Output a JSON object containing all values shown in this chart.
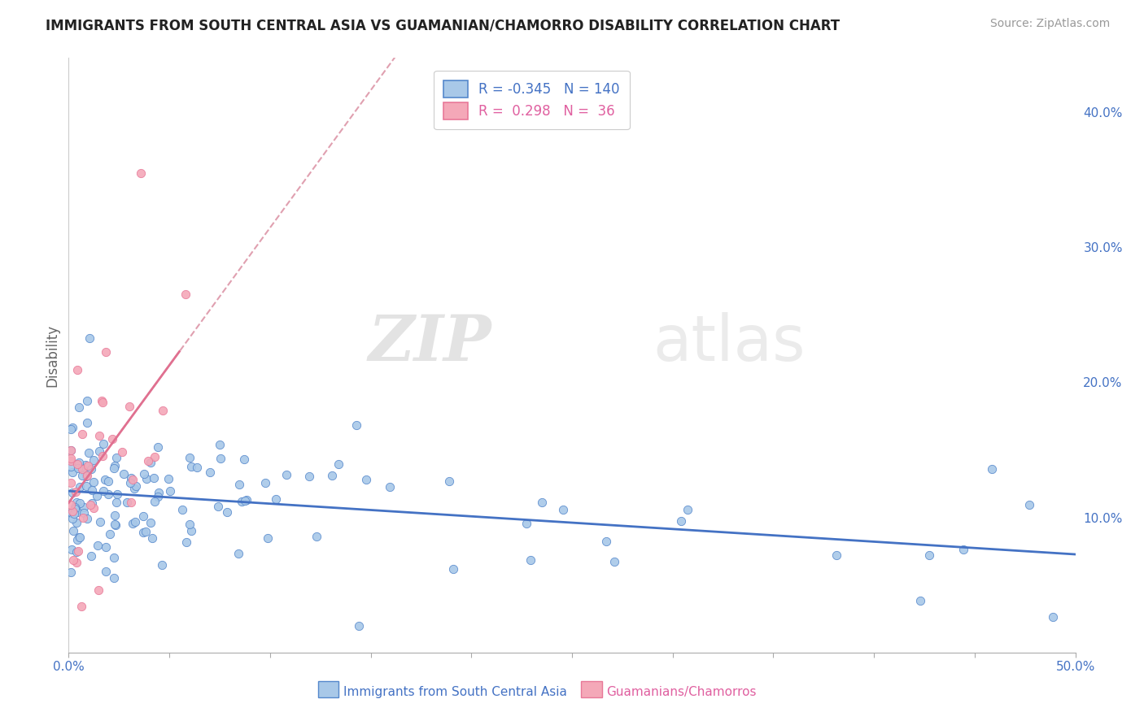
{
  "title": "IMMIGRANTS FROM SOUTH CENTRAL ASIA VS GUAMANIAN/CHAMORRO DISABILITY CORRELATION CHART",
  "source": "Source: ZipAtlas.com",
  "ylabel": "Disability",
  "xlim": [
    0.0,
    0.5
  ],
  "ylim": [
    0.0,
    0.44
  ],
  "xtick_positions": [
    0.0,
    0.05,
    0.1,
    0.15,
    0.2,
    0.25,
    0.3,
    0.35,
    0.4,
    0.45,
    0.5
  ],
  "xtick_labels": [
    "0.0%",
    "",
    "",
    "",
    "",
    "",
    "",
    "",
    "",
    "",
    "50.0%"
  ],
  "yticks_right": [
    0.1,
    0.2,
    0.3,
    0.4
  ],
  "ytick_right_labels": [
    "10.0%",
    "20.0%",
    "30.0%",
    "40.0%"
  ],
  "blue_color": "#a8c8e8",
  "pink_color": "#f4a8b8",
  "blue_edge_color": "#5588cc",
  "pink_edge_color": "#e87898",
  "blue_line_color": "#4472c4",
  "pink_line_color": "#e07090",
  "dashed_line_color": "#e0a0b0",
  "watermark_zip": "ZIP",
  "watermark_atlas": "atlas",
  "title_fontsize": 12,
  "source_fontsize": 10,
  "legend_fontsize": 12,
  "tick_fontsize": 11,
  "blue_seed": 42,
  "pink_seed": 77
}
